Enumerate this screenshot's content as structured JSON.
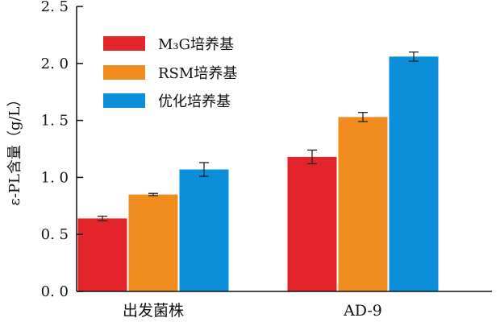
{
  "chart_data": {
    "type": "bar",
    "categories": [
      "出发菌株",
      "AD-9"
    ],
    "series": [
      {
        "name": "M₃G培养基",
        "color": "#e3242b",
        "values": [
          0.64,
          1.18
        ],
        "errors": [
          0.02,
          0.06
        ]
      },
      {
        "name": "RSM培养基",
        "color": "#f08c1e",
        "values": [
          0.85,
          1.53
        ],
        "errors": [
          0.01,
          0.04
        ]
      },
      {
        "name": "优化培养基",
        "color": "#0a8fd8",
        "values": [
          1.07,
          2.06
        ],
        "errors": [
          0.06,
          0.04
        ]
      }
    ],
    "ylabel": "ε-PL含量（g/L）",
    "ylim": [
      0,
      2.5
    ],
    "yticks": [
      "0. 0",
      "0. 5",
      "1. 0",
      "1. 5",
      "2. 0",
      "2. 5"
    ],
    "grid": false,
    "legend_position": "top-left"
  }
}
